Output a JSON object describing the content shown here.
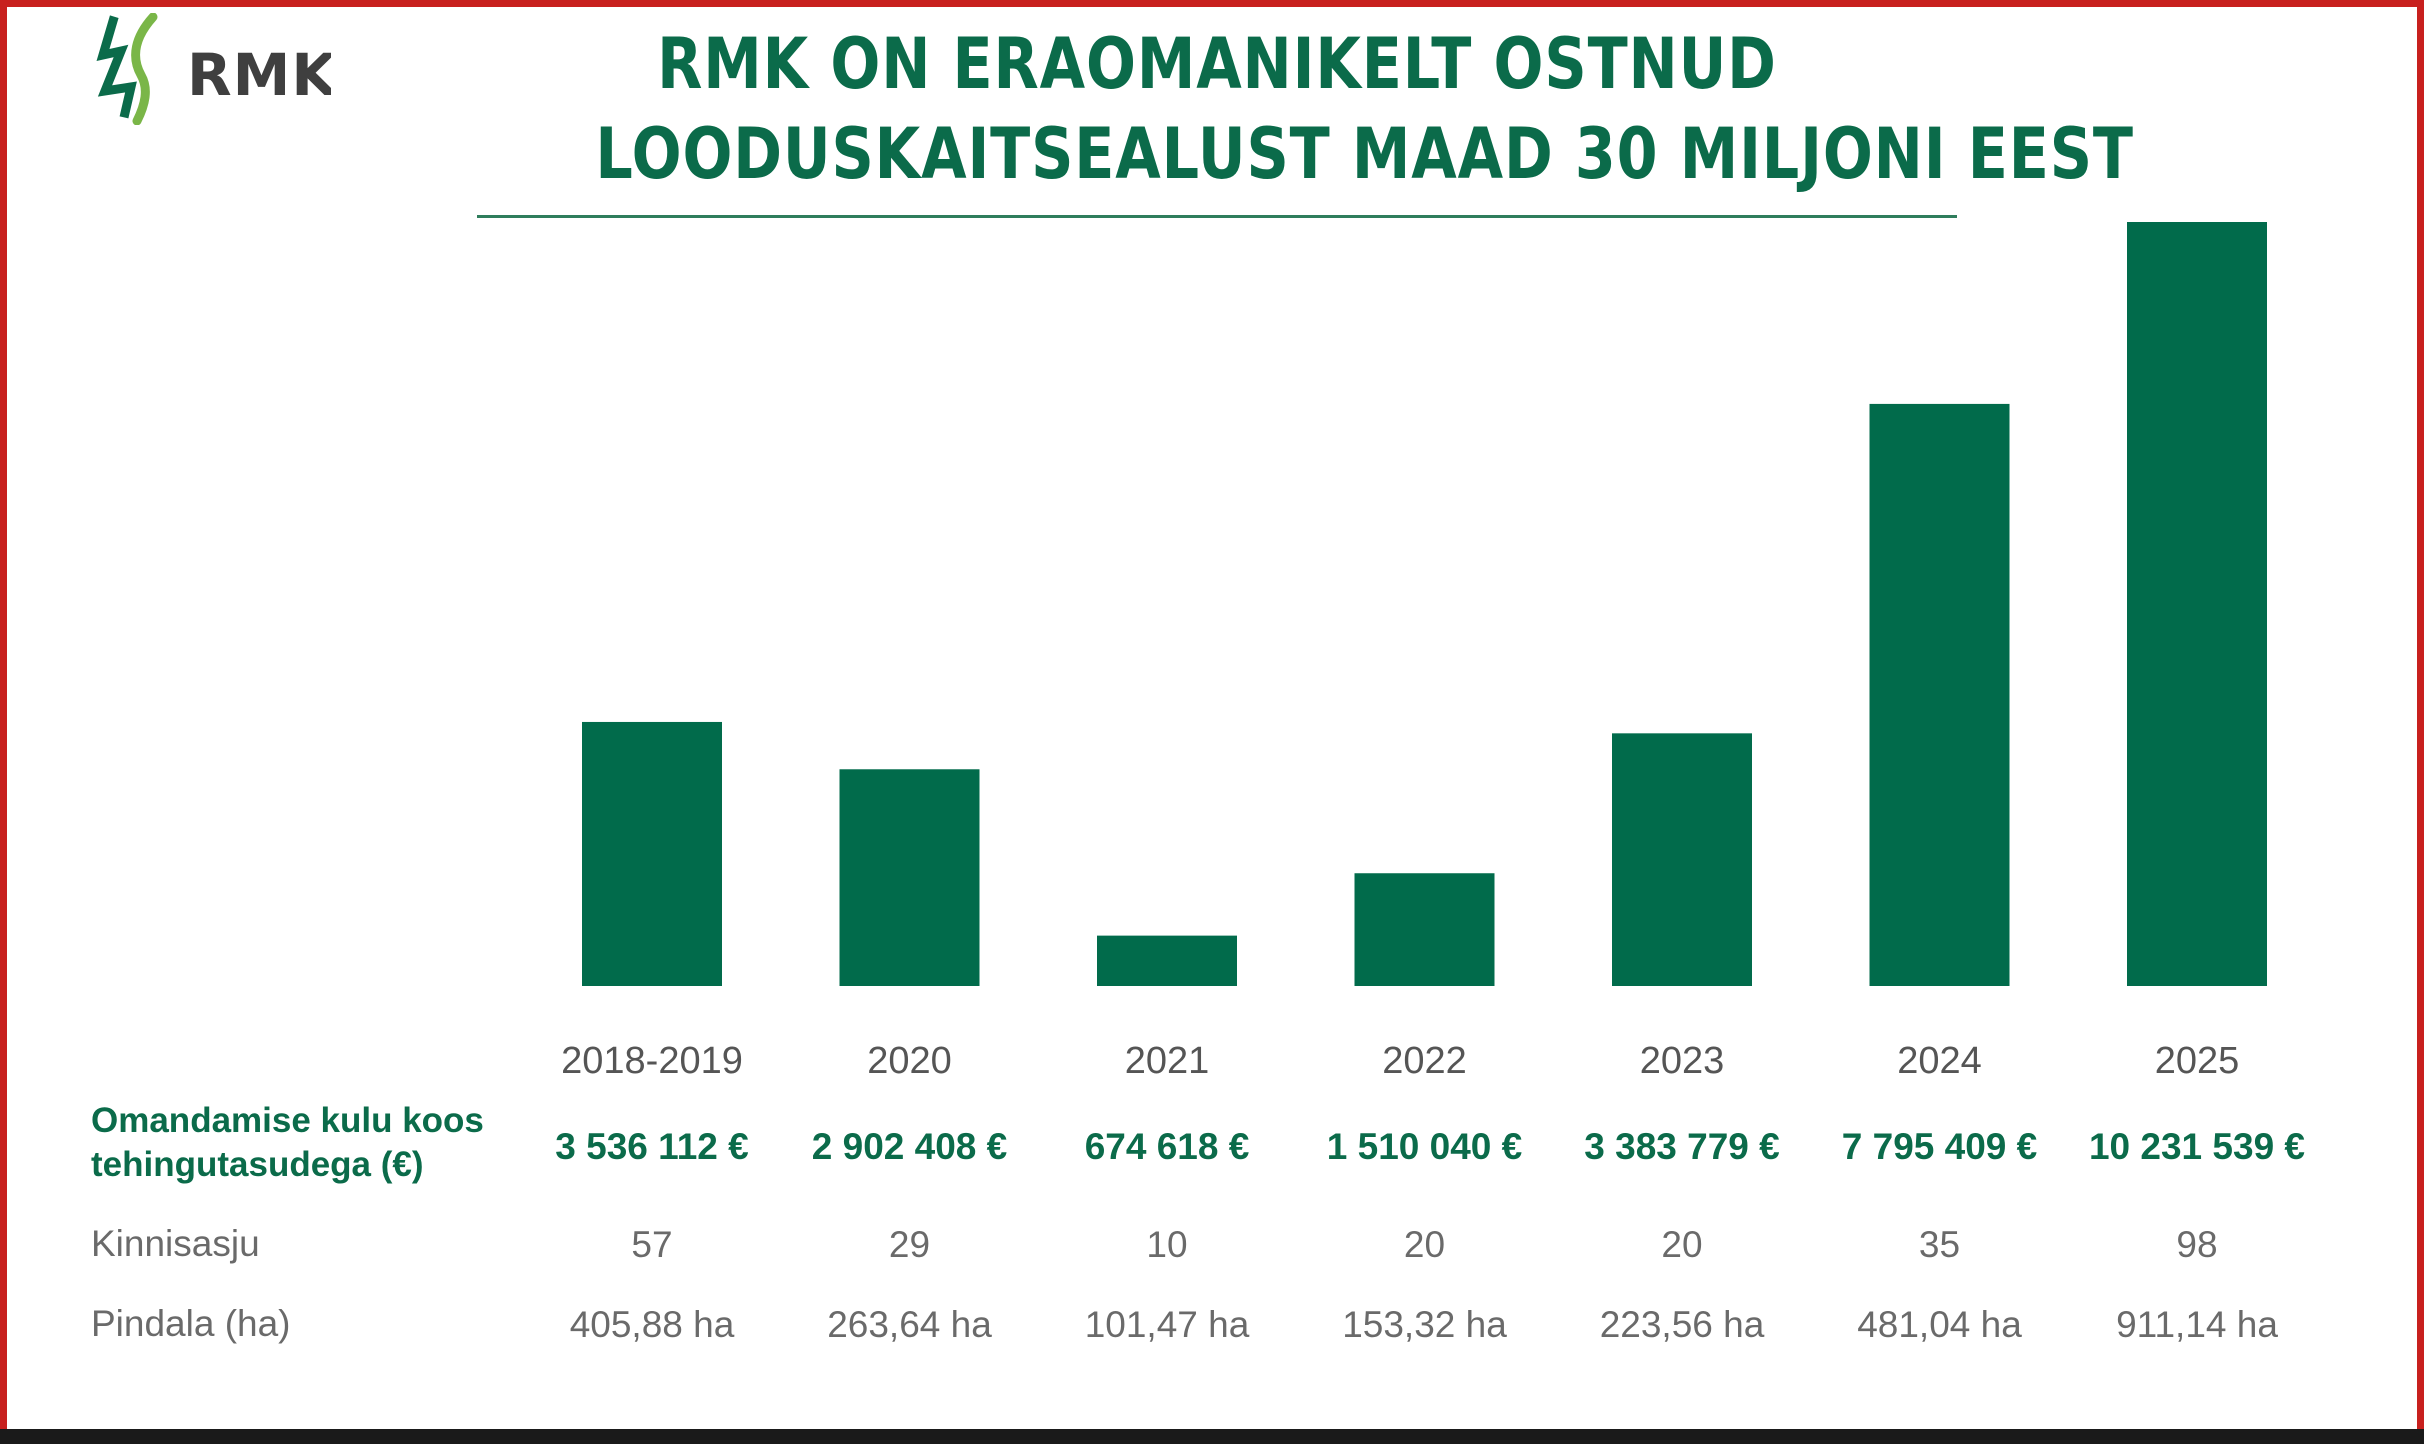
{
  "logo": {
    "text": "RMK",
    "color": "#0b6b4a"
  },
  "title": {
    "line1": "RMK ON ERAOMANIKELT OSTNUD",
    "line2": "LOODUSKAITSEALUST MAAD 30 MILJONI EEST"
  },
  "rows": {
    "money_label": "Omandamise kulu koos tehingutasudega (€)",
    "count_label": "Kinnisasju",
    "area_label": "Pindala (ha)"
  },
  "chart_data": {
    "type": "bar",
    "categories": [
      "2018-2019",
      "2020",
      "2021",
      "2022",
      "2023",
      "2024",
      "2025"
    ],
    "values": [
      3536112,
      2902408,
      674618,
      1510040,
      3383779,
      7795409,
      10231539
    ],
    "value_labels": [
      "3 536 112 €",
      "2 902 408 €",
      "674 618 €",
      "1 510 040 €",
      "3 383 779 €",
      "7 795 409 €",
      "10 231 539 €"
    ],
    "kinnisasju": [
      "57",
      "29",
      "10",
      "20",
      "20",
      "35",
      "98"
    ],
    "pindala": [
      "405,88 ha",
      "263,64 ha",
      "101,47 ha",
      "153,32 ha",
      "223,56 ha",
      "481,04 ha",
      "911,14 ha"
    ],
    "bar_color": "#016b4b",
    "grid": false,
    "legend": "none"
  }
}
